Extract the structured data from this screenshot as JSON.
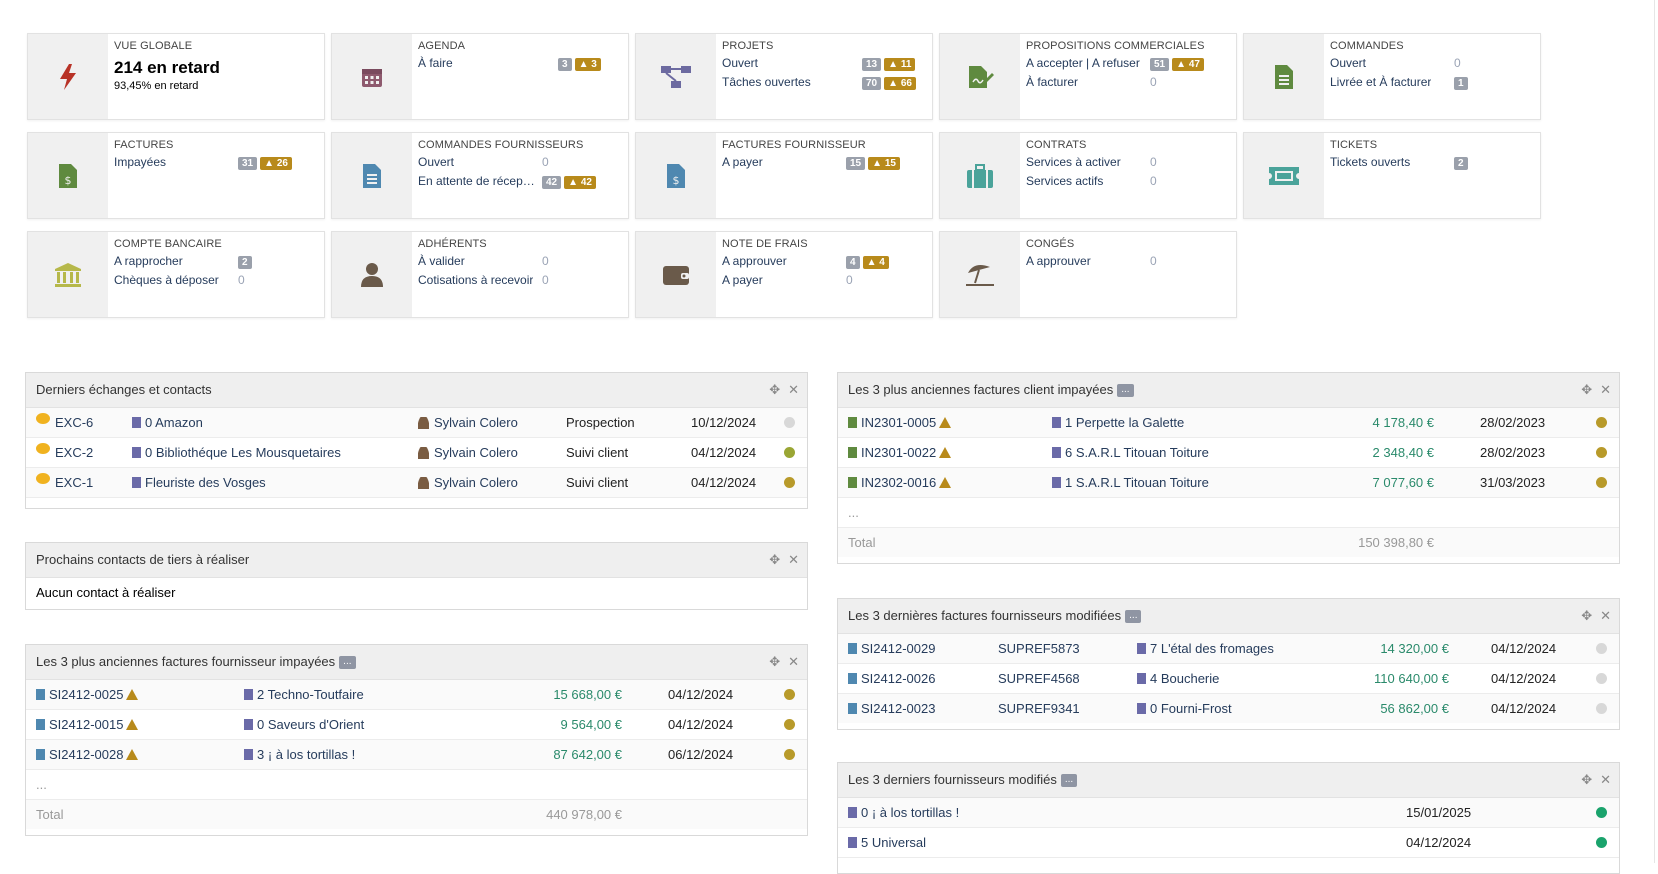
{
  "boxes": [
    {
      "title": "VUE GLOBALE",
      "big": "214 en retard",
      "small": "93,45% en retard",
      "icon": "bolt-icon",
      "color": "#b83226"
    },
    {
      "title": "AGENDA",
      "icon": "calendar-icon",
      "color": "#8e5a6e",
      "lines": [
        {
          "label": "À faire",
          "badge": "3",
          "warn": "3"
        }
      ]
    },
    {
      "title": "PROJETS",
      "icon": "project-icon",
      "color": "#6c6aa0",
      "lines": [
        {
          "label": "Ouvert",
          "badge": "13",
          "warn": "11"
        },
        {
          "label": "Tâches ouvertes",
          "badge": "70",
          "warn": "66"
        }
      ]
    },
    {
      "title": "PROPOSITIONS COMMERCIALES",
      "icon": "signature-icon",
      "color": "#5f8a3f",
      "lines": [
        {
          "label": "A accepter | A refuser",
          "badge": "51",
          "warn": "47"
        },
        {
          "label": "À facturer",
          "zero": "0"
        }
      ]
    },
    {
      "title": "COMMANDES",
      "icon": "order-icon",
      "color": "#5f8a3f",
      "lines": [
        {
          "label": "Ouvert",
          "zero": "0"
        },
        {
          "label": "Livrée et À facturer",
          "badge": "1"
        }
      ]
    },
    {
      "title": "FACTURES",
      "icon": "invoice-icon",
      "color": "#5f8a3f",
      "lines": [
        {
          "label": "Impayées",
          "badge": "31",
          "warn": "26"
        }
      ]
    },
    {
      "title": "COMMANDES FOURNISSEURS",
      "icon": "supplier-order-icon",
      "color": "#4f88b0",
      "lines": [
        {
          "label": "Ouvert",
          "zero": "0"
        },
        {
          "label": "En attente de récept...",
          "badge": "42",
          "warn": "42"
        }
      ]
    },
    {
      "title": "FACTURES FOURNISSEUR",
      "icon": "supplier-invoice-icon",
      "color": "#4f88b0",
      "lines": [
        {
          "label": "A payer",
          "badge": "15",
          "warn": "15"
        }
      ]
    },
    {
      "title": "CONTRATS",
      "icon": "briefcase-icon",
      "color": "#4aa39a",
      "lines": [
        {
          "label": "Services à activer",
          "zero": "0"
        },
        {
          "label": "Services actifs",
          "zero": "0"
        }
      ]
    },
    {
      "title": "TICKETS",
      "icon": "ticket-icon",
      "color": "#4aa39a",
      "lines": [
        {
          "label": "Tickets ouverts",
          "badge": "2"
        }
      ]
    },
    {
      "title": "COMPTE BANCAIRE",
      "icon": "bank-icon",
      "color": "#b6b84a",
      "lines": [
        {
          "label": "A rapprocher",
          "badge": "2"
        },
        {
          "label": "Chèques à déposer",
          "zero": "0"
        }
      ]
    },
    {
      "title": "ADHÉRENTS",
      "icon": "member-icon",
      "color": "#6a5a4a",
      "lines": [
        {
          "label": "À valider",
          "zero": "0"
        },
        {
          "label": "Cotisations à recevoir",
          "zero": "0"
        }
      ]
    },
    {
      "title": "NOTE DE FRAIS",
      "icon": "wallet-icon",
      "color": "#6a5a4a",
      "lines": [
        {
          "label": "A approuver",
          "badge": "4",
          "warn": "4"
        },
        {
          "label": "A payer",
          "zero": "0"
        }
      ]
    },
    {
      "title": "CONGÉS",
      "icon": "beach-umbrella-icon",
      "color": "#6a5a4a",
      "lines": [
        {
          "label": "A approuver",
          "zero": "0"
        }
      ]
    }
  ],
  "panel_exchanges": {
    "title": "Derniers échanges et contacts",
    "rows": [
      {
        "ref": "EXC-6",
        "company": "0 Amazon",
        "user": "Sylvain Colero",
        "type": "Prospection",
        "date": "10/12/2024",
        "status": "#d8d8d8"
      },
      {
        "ref": "EXC-2",
        "company": "0 Bibliothéque Les Mousquetaires",
        "user": "Sylvain Colero",
        "type": "Suivi client",
        "date": "04/12/2024",
        "status": "#9aa634"
      },
      {
        "ref": "EXC-1",
        "company": "Fleuriste des Vosges",
        "user": "Sylvain Colero",
        "type": "Suivi client",
        "date": "04/12/2024",
        "status": "#b89a2a"
      }
    ]
  },
  "panel_next_contacts": {
    "title": "Prochains contacts de tiers à réaliser",
    "empty": "Aucun contact à réaliser"
  },
  "panel_supplier_unpaid": {
    "title": "Les 3 plus anciennes factures fournisseur impayées",
    "more": "...",
    "rows": [
      {
        "ref": "SI2412-0025",
        "company": "2 Techno-Toutfaire",
        "amount": "15 668,00 €",
        "date": "04/12/2024",
        "status": "#b89a2a"
      },
      {
        "ref": "SI2412-0015",
        "company": "0 Saveurs d'Orient",
        "amount": "9 564,00 €",
        "date": "04/12/2024",
        "status": "#b89a2a"
      },
      {
        "ref": "SI2412-0028",
        "company": "3 ¡ à los tortillas !",
        "amount": "87 642,00 €",
        "date": "06/12/2024",
        "status": "#b89a2a"
      }
    ],
    "ellipsis": "...",
    "total_label": "Total",
    "total": "440 978,00 €"
  },
  "panel_customer_unpaid": {
    "title": "Les 3 plus anciennes factures client impayées",
    "more": "...",
    "rows": [
      {
        "ref": "IN2301-0005",
        "company": "1 Perpette la Galette",
        "amount": "4 178,40 €",
        "date": "28/02/2023",
        "status": "#b89a2a"
      },
      {
        "ref": "IN2301-0022",
        "company": "6 S.A.R.L Titouan Toiture",
        "amount": "2 348,40 €",
        "date": "28/02/2023",
        "status": "#b89a2a"
      },
      {
        "ref": "IN2302-0016",
        "company": "1 S.A.R.L Titouan Toiture",
        "amount": "7 077,60 €",
        "date": "31/03/2023",
        "status": "#b89a2a"
      }
    ],
    "ellipsis": "...",
    "total_label": "Total",
    "total": "150 398,80 €"
  },
  "panel_supplier_modified": {
    "title": "Les 3 dernières factures fournisseurs modifiées",
    "more": "...",
    "rows": [
      {
        "ref": "SI2412-0029",
        "supref": "SUPREF5873",
        "company": "7 L'étal des fromages",
        "amount": "14 320,00 €",
        "date": "04/12/2024",
        "status": "#d8d8d8"
      },
      {
        "ref": "SI2412-0026",
        "supref": "SUPREF4568",
        "company": "4 Boucherie",
        "amount": "110 640,00 €",
        "date": "04/12/2024",
        "status": "#d8d8d8"
      },
      {
        "ref": "SI2412-0023",
        "supref": "SUPREF9341",
        "company": "0 Fourni-Frost",
        "amount": "56 862,00 €",
        "date": "04/12/2024",
        "status": "#d8d8d8"
      }
    ]
  },
  "panel_suppliers": {
    "title": "Les 3 derniers fournisseurs modifiés",
    "more": "...",
    "rows": [
      {
        "company": "0 ¡ à los tortillas !",
        "date": "15/01/2025",
        "status": "#1aa36c"
      },
      {
        "company": "5 Universal",
        "date": "04/12/2024",
        "status": "#1aa36c"
      }
    ]
  },
  "controls": {
    "move": "✥",
    "close": "✕"
  }
}
